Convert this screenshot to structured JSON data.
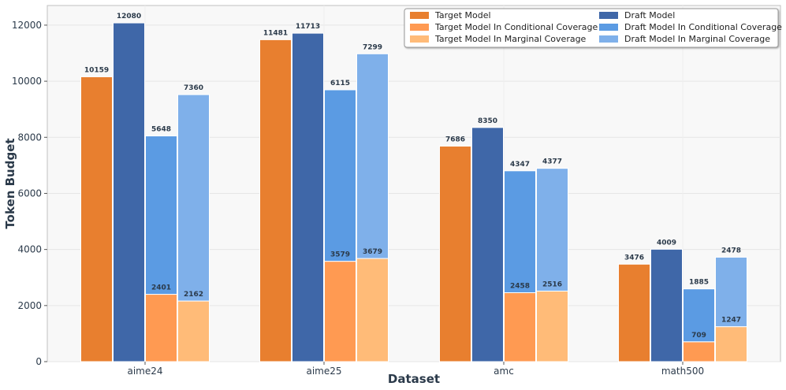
{
  "chart_data": {
    "type": "bar",
    "xlabel": "Dataset",
    "ylabel": "Token Budget",
    "ylim": [
      0,
      12700
    ],
    "yticks": [
      0,
      2000,
      4000,
      6000,
      8000,
      10000,
      12000
    ],
    "categories": [
      "aime24",
      "aime25",
      "amc",
      "math500"
    ],
    "grid": true,
    "legend_position": "top-right",
    "series": [
      {
        "name": "Target Model",
        "color": "#e87f2f",
        "values": [
          10159,
          11481,
          7686,
          3476
        ]
      },
      {
        "name": "Draft Model",
        "color": "#3f67a8",
        "values": [
          12080,
          11713,
          8350,
          4009
        ]
      },
      {
        "name": "Target Model In Conditional Coverage",
        "color": "#ff9a52",
        "stack_group": "conditional",
        "values": [
          2401,
          3579,
          2458,
          709
        ]
      },
      {
        "name": "Draft Model In Conditional Coverage",
        "color": "#5b9be3",
        "stack_group": "conditional",
        "values": [
          5648,
          6115,
          4347,
          1885
        ]
      },
      {
        "name": "Target Model In Marginal Coverage",
        "color": "#ffbb78",
        "stack_group": "marginal",
        "values": [
          2162,
          3679,
          2516,
          1247
        ]
      },
      {
        "name": "Draft Model In Marginal Coverage",
        "color": "#7fb0ea",
        "stack_group": "marginal",
        "values": [
          7360,
          7299,
          4377,
          2478
        ]
      }
    ]
  }
}
